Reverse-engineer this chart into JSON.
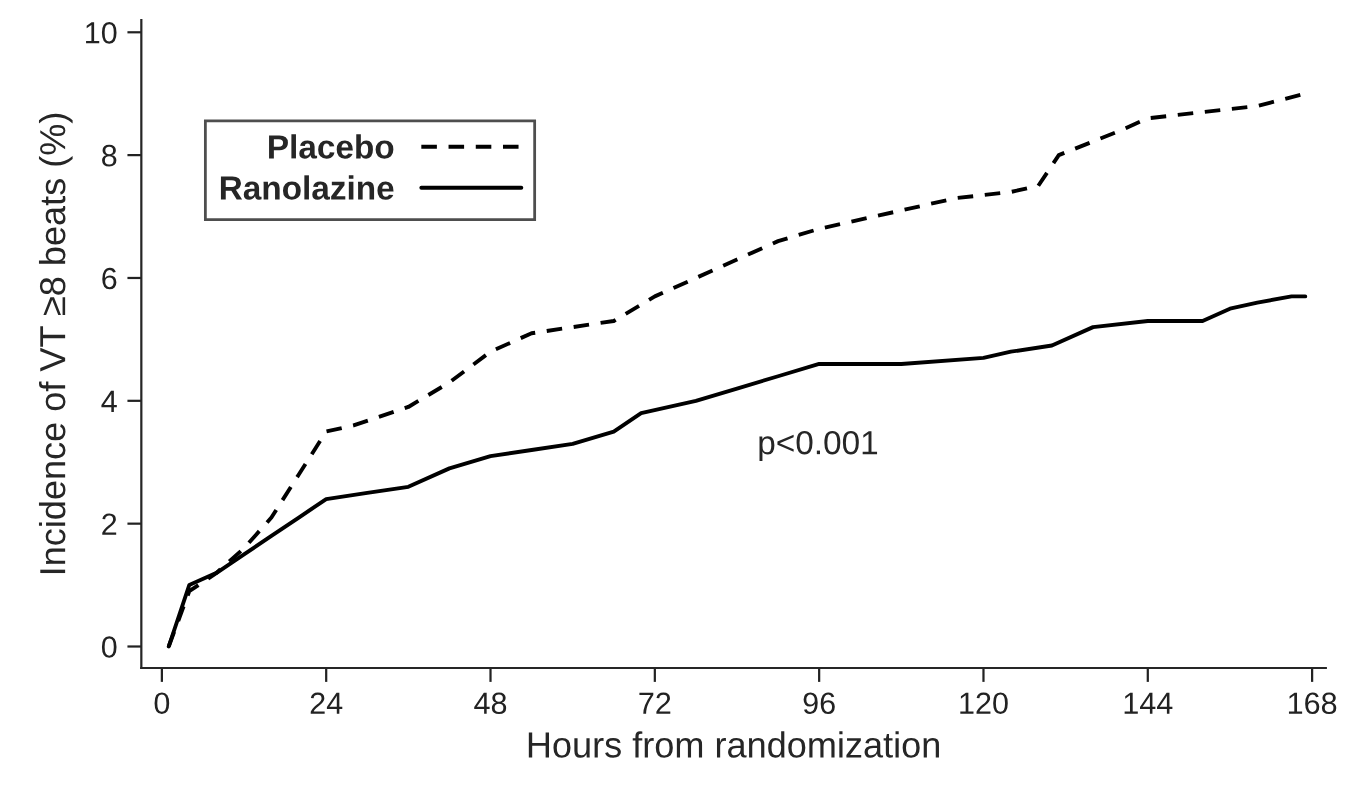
{
  "chart_data": {
    "type": "line",
    "xlabel": "Hours from randomization",
    "ylabel": "Incidence of VT ≥8 beats (%)",
    "xlim": [
      -3,
      170
    ],
    "ylim": [
      -0.35,
      10.2
    ],
    "xticks": [
      0,
      24,
      48,
      72,
      96,
      120,
      144,
      168
    ],
    "yticks": [
      0,
      2,
      4,
      6,
      8,
      10
    ],
    "grid": false,
    "legend": "top left",
    "marker": "none",
    "annotations": [
      "p<0.001"
    ],
    "series": [
      {
        "name": "Placebo",
        "color": "#000000",
        "line_style": "dashed",
        "x": [
          1,
          2,
          4,
          8,
          12,
          16,
          20,
          24,
          28,
          36,
          42,
          48,
          54,
          60,
          66,
          72,
          78,
          84,
          90,
          96,
          108,
          116,
          124,
          128,
          131,
          140,
          144,
          152,
          160,
          167
        ],
        "values": [
          0,
          0.3,
          0.9,
          1.2,
          1.6,
          2.1,
          2.8,
          3.5,
          3.6,
          3.9,
          4.3,
          4.8,
          5.1,
          5.2,
          5.3,
          5.7,
          6.0,
          6.3,
          6.6,
          6.8,
          7.1,
          7.3,
          7.4,
          7.5,
          8.0,
          8.4,
          8.6,
          8.7,
          8.8,
          9.0
        ]
      },
      {
        "name": "Ranolazine",
        "color": "#000000",
        "line_style": "solid",
        "x": [
          1,
          4,
          8,
          12,
          16,
          20,
          24,
          30,
          36,
          42,
          48,
          54,
          60,
          66,
          70,
          78,
          84,
          90,
          96,
          108,
          120,
          124,
          130,
          136,
          144,
          152,
          156,
          160,
          165,
          167
        ],
        "values": [
          0,
          1.0,
          1.2,
          1.5,
          1.8,
          2.1,
          2.4,
          2.5,
          2.6,
          2.9,
          3.1,
          3.2,
          3.3,
          3.5,
          3.8,
          4.0,
          4.2,
          4.4,
          4.6,
          4.6,
          4.7,
          4.8,
          4.9,
          5.2,
          5.3,
          5.3,
          5.5,
          5.6,
          5.7,
          5.7
        ]
      }
    ]
  }
}
